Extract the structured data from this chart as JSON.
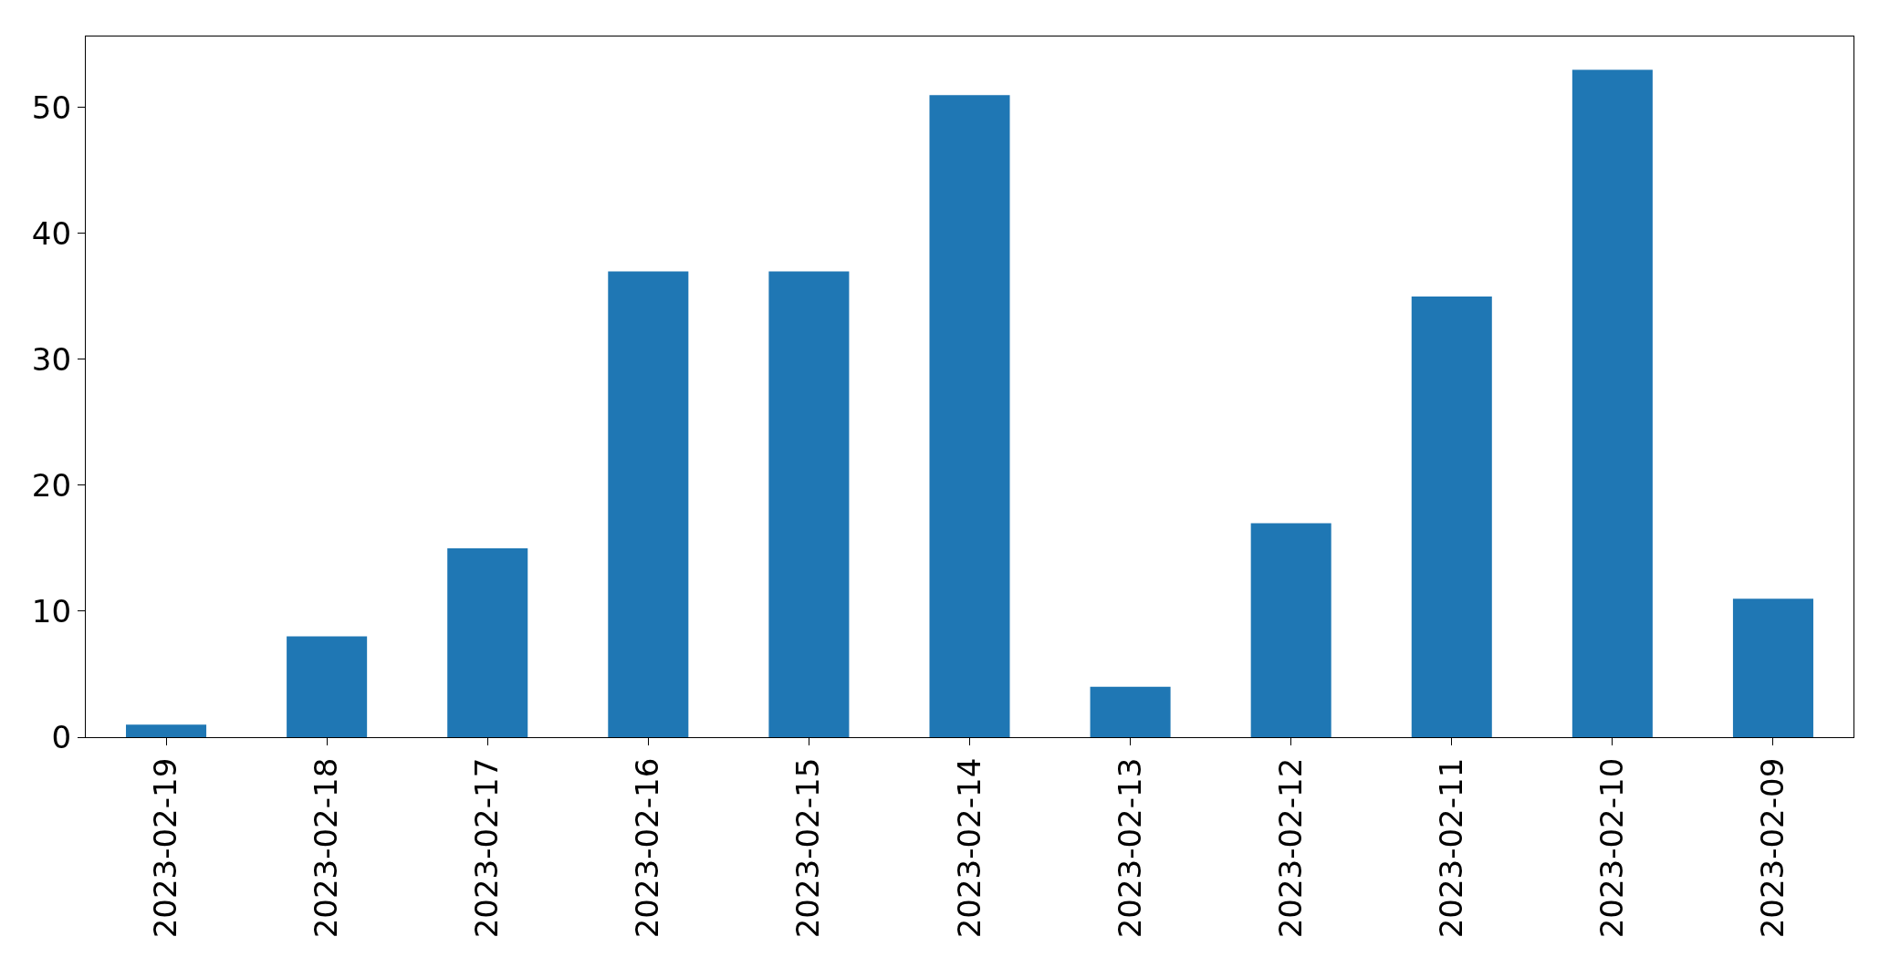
{
  "chart_data": {
    "type": "bar",
    "categories": [
      "2023-02-19",
      "2023-02-18",
      "2023-02-17",
      "2023-02-16",
      "2023-02-15",
      "2023-02-14",
      "2023-02-13",
      "2023-02-12",
      "2023-02-11",
      "2023-02-10",
      "2023-02-09"
    ],
    "values": [
      1,
      8,
      15,
      37,
      37,
      51,
      4,
      17,
      35,
      53,
      11
    ],
    "color": "#1f77b4",
    "ylim": [
      0,
      55.65
    ],
    "yticks": [
      0,
      10,
      20,
      30,
      40,
      50
    ]
  }
}
